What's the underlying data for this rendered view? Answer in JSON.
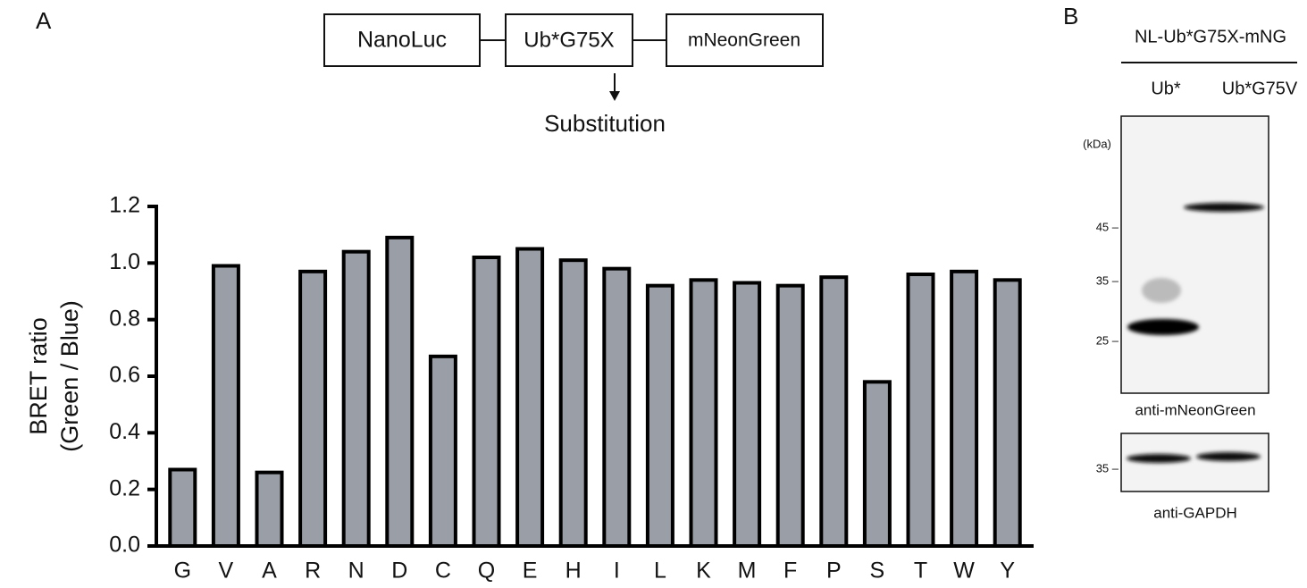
{
  "panel_labels": [
    "A",
    "B"
  ],
  "diagram": {
    "boxes": [
      "NanoLuc",
      "Ub*G75X",
      "mNeonGreen"
    ],
    "annotation": "Substitution"
  },
  "chart_data": {
    "type": "bar",
    "ylabel": [
      "BRET ratio",
      "(Green / Blue)"
    ],
    "categories": [
      "G",
      "V",
      "A",
      "R",
      "N",
      "D",
      "C",
      "Q",
      "E",
      "H",
      "I",
      "L",
      "K",
      "M",
      "F",
      "P",
      "S",
      "T",
      "W",
      "Y"
    ],
    "values": [
      0.27,
      0.99,
      0.26,
      0.97,
      1.04,
      1.09,
      0.67,
      1.02,
      1.05,
      1.01,
      0.98,
      0.92,
      0.94,
      0.93,
      0.92,
      0.95,
      0.58,
      0.96,
      0.97,
      0.94
    ],
    "color": "#9a9ea6",
    "ylim": [
      0,
      1.2
    ],
    "yticks": [
      {
        "value": 0,
        "label": "0.0"
      },
      0.2,
      0.4,
      0.6,
      0.8,
      {
        "value": 1,
        "label": "1.0"
      },
      1.2
    ]
  },
  "blot": {
    "construct": "NL-Ub*G75X-mNG",
    "lanes": [
      "Ub*",
      "Ub*G75V"
    ],
    "unit": "(kDa)",
    "markers": [
      "45 –",
      "35 –",
      "25 –"
    ],
    "top_label": "anti-mNeonGreen",
    "bottom_marker": "35 –",
    "bottom_label": "anti-GAPDH"
  }
}
